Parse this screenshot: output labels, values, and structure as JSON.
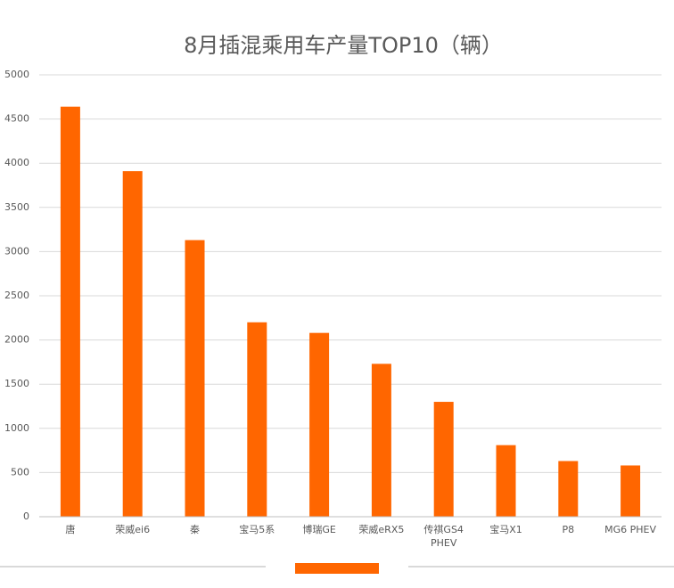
{
  "chart_data": {
    "type": "bar",
    "title": "8月插混乘用车产量TOP10（辆）",
    "categories": [
      "唐",
      "荣威ei6",
      "秦",
      "宝马5系",
      "博瑞GE",
      "荣威eRX5",
      "传祺GS4 PHEV",
      "宝马X1",
      "P8",
      "MG6 PHEV"
    ],
    "values": [
      4640,
      3910,
      3130,
      2200,
      2080,
      1730,
      1300,
      810,
      630,
      580
    ],
    "color": "#ff6600",
    "ylim": [
      0,
      5000
    ],
    "yticks": [
      0,
      500,
      1000,
      1500,
      2000,
      2500,
      3000,
      3500,
      4000,
      4500,
      5000
    ],
    "grid": true
  }
}
